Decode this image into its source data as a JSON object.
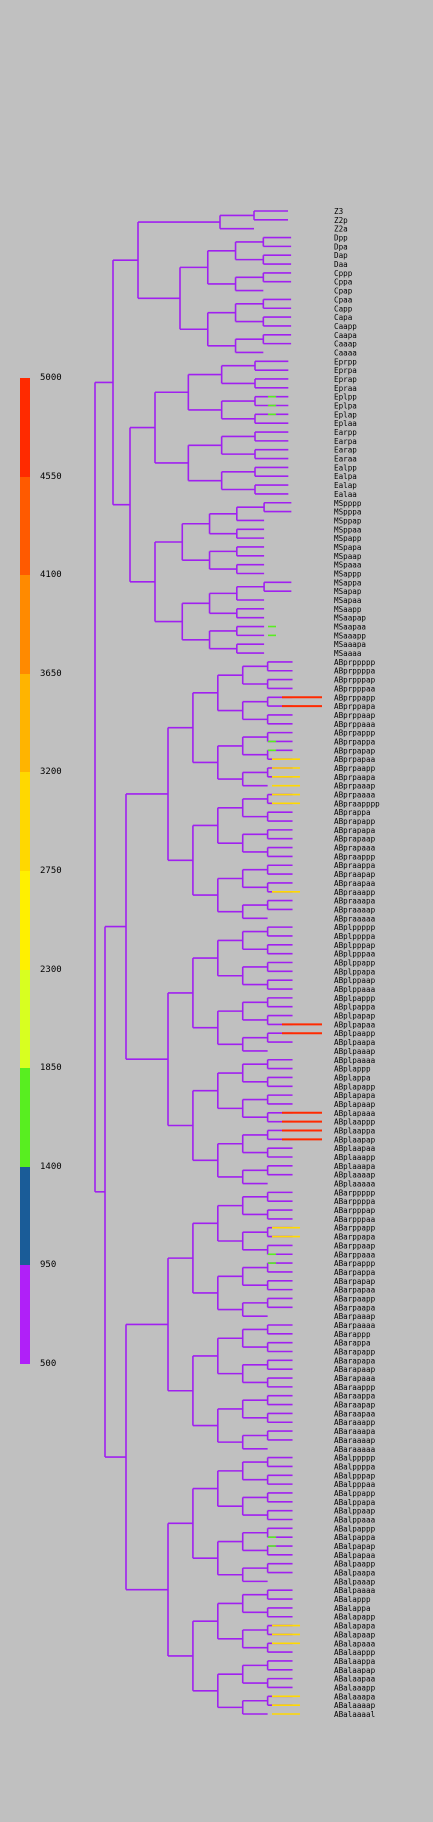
{
  "legend": {
    "ticks": [
      "5000",
      "4550",
      "4100",
      "3650",
      "3200",
      "2750",
      "2300",
      "1850",
      "1400",
      "950",
      "500"
    ],
    "colors": [
      "#ff2a00",
      "#ff5a00",
      "#ff8a00",
      "#ffb400",
      "#ffd800",
      "#fff000",
      "#d8ff20",
      "#58ee20",
      "#1a5c98",
      "#b020f8"
    ]
  },
  "colors": {
    "background": "#c0c0c0",
    "branch": "#a020f0",
    "text": "#000000"
  },
  "leaves": [
    "Z3",
    "Z2p",
    "Z2a",
    "Dpp",
    "Dpa",
    "Dap",
    "Daa",
    "Cppp",
    "Cppa",
    "Cpap",
    "Cpaa",
    "Capp",
    "Capa",
    "Caapp",
    "Caapa",
    "Caaap",
    "Caaaa",
    "Eprpp",
    "Eprpa",
    "Eprap",
    "Epraa",
    "Eplpp",
    "Eplpa",
    "Eplap",
    "Eplaa",
    "Earpp",
    "Earpa",
    "Earap",
    "Earaa",
    "Ealpp",
    "Ealpa",
    "Ealap",
    "Ealaa",
    "MSpppp",
    "MSpppa",
    "MSppap",
    "MSppaa",
    "MSpapp",
    "MSpapa",
    "MSpaap",
    "MSpaaa",
    "MSappp",
    "MSappa",
    "MSapap",
    "MSapaa",
    "MSaapp",
    "MSaapap",
    "MSaapaa",
    "MSaaapp",
    "MSaaapa",
    "MSaaaa",
    "ABprppppp",
    "ABprppppa",
    "ABprpppap",
    "ABprpppaa",
    "ABprppapp",
    "ABprppapa",
    "ABprppaap",
    "ABprppaaa",
    "ABprpappp",
    "ABprpappa",
    "ABprpapap",
    "ABprpapaa",
    "ABprpaapp",
    "ABprpaapa",
    "ABprpaaap",
    "ABprpaaaa",
    "ABpraapppp",
    "ABprappa",
    "ABprapapp",
    "ABprapapa",
    "ABprapaap",
    "ABprapaaa",
    "ABpraappp",
    "ABpraappa",
    "ABpraapap",
    "ABpraapaa",
    "ABpraaapp",
    "ABpraaapa",
    "ABpraaaap",
    "ABpraaaaa",
    "ABplppppp",
    "ABplppppa",
    "ABplpppap",
    "ABplpppaa",
    "ABplppapp",
    "ABplppapa",
    "ABplppaap",
    "ABplppaaa",
    "ABplpappp",
    "ABplpappa",
    "ABplpapap",
    "ABplpapaa",
    "ABplpaapp",
    "ABplpaapa",
    "ABplpaaap",
    "ABplpaaaa",
    "ABplappp",
    "ABplappa",
    "ABplapapp",
    "ABplapapa",
    "ABplapaap",
    "ABplapaaa",
    "ABplaappp",
    "ABplaappa",
    "ABplaapap",
    "ABplaapaa",
    "ABplaaapp",
    "ABplaaapa",
    "ABplaaaap",
    "ABplaaaaa",
    "ABarppppp",
    "ABarppppa",
    "ABarpppap",
    "ABarpppaa",
    "ABarppapp",
    "ABarppapa",
    "ABarppaap",
    "ABarppaaa",
    "ABarpappp",
    "ABarpappa",
    "ABarpapap",
    "ABarpapaa",
    "ABarpaapp",
    "ABarpaapa",
    "ABarpaaap",
    "ABarpaaaa",
    "ABarappp",
    "ABarappa",
    "ABarapapp",
    "ABarapapa",
    "ABarapaap",
    "ABarapaaa",
    "ABaraappp",
    "ABaraappa",
    "ABaraapap",
    "ABaraapaa",
    "ABaraaapp",
    "ABaraaapa",
    "ABaraaaap",
    "ABaraaaaa",
    "ABalppppp",
    "ABalppppa",
    "ABalpppap",
    "ABalpppaa",
    "ABalppapp",
    "ABalppapa",
    "ABalppaap",
    "ABalppaaa",
    "ABalpappp",
    "ABalpappa",
    "ABalpapap",
    "ABalpapaa",
    "ABalpaapp",
    "ABalpaapa",
    "ABalpaaap",
    "ABalpaaaa",
    "ABalappp",
    "ABalappa",
    "ABalapapp",
    "ABalapapa",
    "ABalapaap",
    "ABalapaaa",
    "ABalaappp",
    "ABalaappa",
    "ABalaapap",
    "ABalaapaa",
    "ABalaaapp",
    "ABalaaapa",
    "ABalaaaap",
    "ABalaaaal"
  ]
}
